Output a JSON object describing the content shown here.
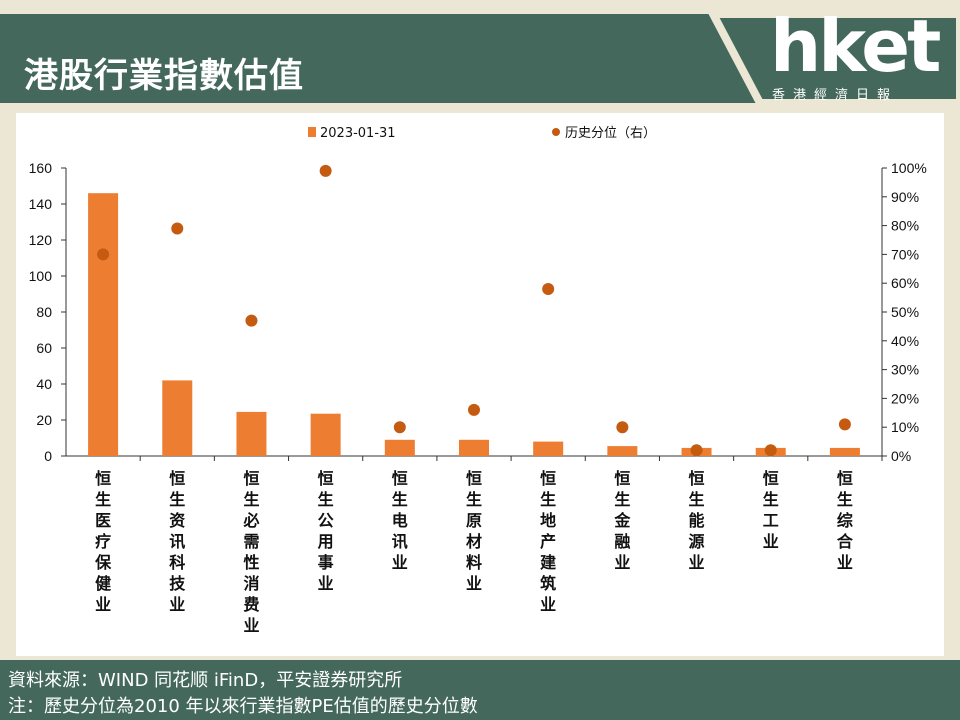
{
  "header": {
    "title": "港股行業指數估值",
    "logo_text": "hket",
    "logo_sub": "香港經濟日報"
  },
  "colors": {
    "band": "#44695c",
    "bar": "#ed7d31",
    "dot": "#c55a11",
    "page_bg": "#ece7d5"
  },
  "chart_data": {
    "type": "bar",
    "legend": {
      "bar": "2023-01-31",
      "dot": "历史分位（右）",
      "placement": "top"
    },
    "categories": [
      "恒生医疗保健业",
      "恒生资讯科技业",
      "恒生必需性消费业",
      "恒生公用事业",
      "恒生电讯业",
      "恒生原材料业",
      "恒生地产建筑业",
      "恒生金融业",
      "恒生能源业",
      "恒生工业",
      "恒生综合业"
    ],
    "series": [
      {
        "name": "2023-01-31",
        "type": "bar",
        "axis": "left",
        "values": [
          146,
          42,
          24.5,
          23.5,
          9,
          9,
          8,
          5.5,
          4.5,
          4.5,
          4.5
        ]
      },
      {
        "name": "历史分位（右）",
        "type": "scatter",
        "axis": "right",
        "values": [
          70,
          79,
          47,
          99,
          10,
          16,
          58,
          10,
          2,
          2,
          11
        ]
      }
    ],
    "ylim_left": [
      0,
      160
    ],
    "yticks_left": [
      "0",
      "20",
      "40",
      "60",
      "80",
      "100",
      "120",
      "140",
      "160"
    ],
    "ylim_right": [
      0,
      100
    ],
    "yticks_right": [
      "0%",
      "10%",
      "20%",
      "30%",
      "40%",
      "50%",
      "60%",
      "70%",
      "80%",
      "90%",
      "100%"
    ],
    "grid": false
  },
  "footer": {
    "source": "資料來源：WIND 同花顺 iFinD，平安證券研究所",
    "note": "注：歷史分位為2010 年以來行業指數PE估值的歷史分位數"
  }
}
